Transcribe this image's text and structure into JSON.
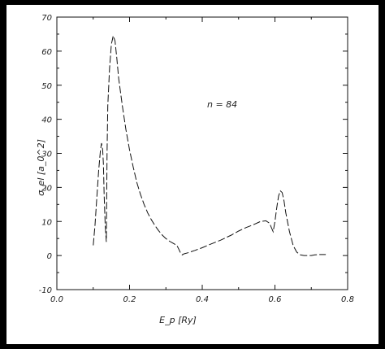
{
  "chart_data": {
    "type": "line",
    "title": "",
    "xlabel": "E_p [Ry]",
    "ylabel": "σ_el [a_0^2]",
    "xlim": [
      0.0,
      0.8
    ],
    "ylim": [
      -10,
      70
    ],
    "x_ticks": [
      0.0,
      0.2,
      0.4,
      0.6,
      0.8
    ],
    "x_tick_labels": [
      "0.0",
      "0.2",
      "0.4",
      "0.6",
      "0.8"
    ],
    "y_ticks": [
      -10,
      0,
      10,
      20,
      30,
      40,
      50,
      60,
      70
    ],
    "y_tick_labels": [
      "-10",
      "0",
      "10",
      "20",
      "30",
      "40",
      "50",
      "60",
      "70"
    ],
    "grid": false,
    "annotation": "n = 84",
    "series": [
      {
        "x": [
          0.1,
          0.105,
          0.11,
          0.115,
          0.12,
          0.123,
          0.126,
          0.128,
          0.13,
          0.133,
          0.136,
          0.138,
          0.14,
          0.145,
          0.15,
          0.155,
          0.16,
          0.165,
          0.17,
          0.18,
          0.19,
          0.2,
          0.21,
          0.22,
          0.23,
          0.24,
          0.25,
          0.26,
          0.27,
          0.28,
          0.29,
          0.3,
          0.31,
          0.32,
          0.33,
          0.335,
          0.34,
          0.345,
          0.35,
          0.36,
          0.38,
          0.4,
          0.42,
          0.45,
          0.48,
          0.5,
          0.52,
          0.54,
          0.56,
          0.575,
          0.585,
          0.595,
          0.6,
          0.605,
          0.61,
          0.615,
          0.62,
          0.625,
          0.63,
          0.64,
          0.65,
          0.66,
          0.67,
          0.68,
          0.69,
          0.7,
          0.71,
          0.72,
          0.74
        ],
        "y": [
          3,
          9,
          17,
          25,
          31,
          33,
          31,
          27,
          18,
          9,
          4,
          30,
          44,
          55,
          62,
          64.5,
          63,
          58,
          52,
          44,
          37,
          31,
          26,
          21.5,
          18,
          15,
          12.5,
          10.5,
          8.8,
          7.3,
          6,
          5,
          4.2,
          3.6,
          3,
          2,
          0.8,
          0.2,
          0.5,
          0.8,
          1.5,
          2.3,
          3.2,
          4.5,
          6,
          7.2,
          8.2,
          9,
          10,
          10.2,
          9.5,
          7,
          10,
          14,
          17.5,
          19,
          18.5,
          16,
          12.5,
          7,
          3,
          1,
          0.2,
          0,
          0,
          0,
          0.2,
          0.3,
          0.3
        ]
      }
    ]
  }
}
